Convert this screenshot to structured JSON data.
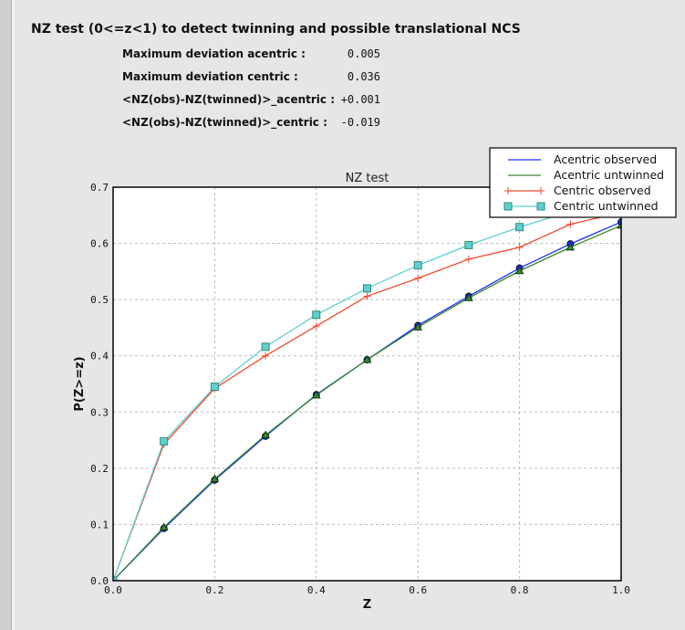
{
  "header": {
    "title": "NZ test (0<=z<1) to detect twinning and possible translational NCS"
  },
  "stats": [
    {
      "label": "Maximum deviation acentric :",
      "value": "0.005"
    },
    {
      "label": "Maximum deviation centric :",
      "value": "0.036"
    },
    {
      "label": "<NZ(obs)-NZ(twinned)>_acentric :",
      "value": "+0.001"
    },
    {
      "label": "<NZ(obs)-NZ(twinned)>_centric :",
      "value": "-0.019"
    }
  ],
  "chart_data": {
    "type": "line",
    "title": "NZ test",
    "xlabel": "Z",
    "ylabel": "P(Z>=z)",
    "xlim": [
      0,
      1
    ],
    "ylim": [
      0,
      0.7
    ],
    "grid": true,
    "legend": "top-right",
    "xticks": [
      "0.0",
      "0.2",
      "0.4",
      "0.6",
      "0.8",
      "1.0"
    ],
    "yticks": [
      "0.0",
      "0.1",
      "0.2",
      "0.3",
      "0.4",
      "0.5",
      "0.6",
      "0.7"
    ],
    "x": [
      0,
      0.1,
      0.2,
      0.3,
      0.4,
      0.5,
      0.6,
      0.7,
      0.8,
      0.9,
      1.0
    ],
    "series": [
      {
        "name": "Acentric observed",
        "color": "#1f2bff",
        "marker": "circle",
        "values": [
          0,
          0.093,
          0.179,
          0.257,
          0.331,
          0.393,
          0.454,
          0.506,
          0.556,
          0.599,
          0.638
        ]
      },
      {
        "name": "Acentric untwinned",
        "color": "#3a8a2a",
        "marker": "triangle",
        "values": [
          0,
          0.095,
          0.181,
          0.259,
          0.33,
          0.393,
          0.451,
          0.503,
          0.551,
          0.593,
          0.632
        ]
      },
      {
        "name": "Centric observed",
        "color": "#f04a2a",
        "marker": "plus",
        "values": [
          0,
          0.243,
          0.342,
          0.4,
          0.453,
          0.506,
          0.538,
          0.572,
          0.593,
          0.634,
          0.655
        ]
      },
      {
        "name": "Centric untwinned",
        "color": "#5fd0d0",
        "marker": "square",
        "values": [
          0,
          0.248,
          0.345,
          0.416,
          0.473,
          0.52,
          0.561,
          0.597,
          0.629,
          0.657,
          0.683
        ]
      }
    ]
  }
}
